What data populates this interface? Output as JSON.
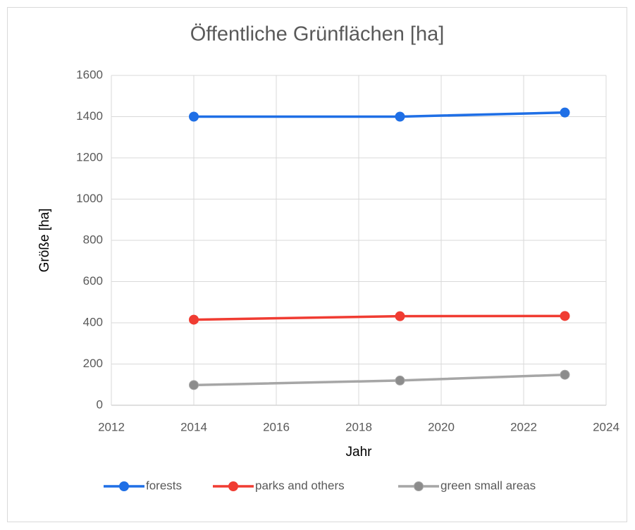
{
  "chart_data": {
    "type": "line",
    "title": "Öffentliche Grünflächen [ha]",
    "x_label": "Jahr",
    "y_label": "Größe [ha]",
    "x": [
      2014,
      2019,
      2023
    ],
    "series": [
      {
        "name": "forests",
        "color": "#1f6fe6",
        "marker_color": "#1f6fe6",
        "values": [
          1400,
          1400,
          1420
        ]
      },
      {
        "name": "parks and others",
        "color": "#f03c32",
        "marker_color": "#f03c32",
        "values": [
          415,
          432,
          433
        ]
      },
      {
        "name": "green small areas",
        "color": "#a6a6a6",
        "marker_color": "#8c8c8c",
        "values": [
          98,
          120,
          148
        ]
      }
    ],
    "xlim": [
      2012,
      2024
    ],
    "xticks": [
      2012,
      2014,
      2016,
      2018,
      2020,
      2022,
      2024
    ],
    "ylim": [
      0,
      1600
    ],
    "yticks": [
      0,
      200,
      400,
      600,
      800,
      1000,
      1200,
      1400,
      1600
    ],
    "grid": true,
    "legend": "bottom"
  }
}
